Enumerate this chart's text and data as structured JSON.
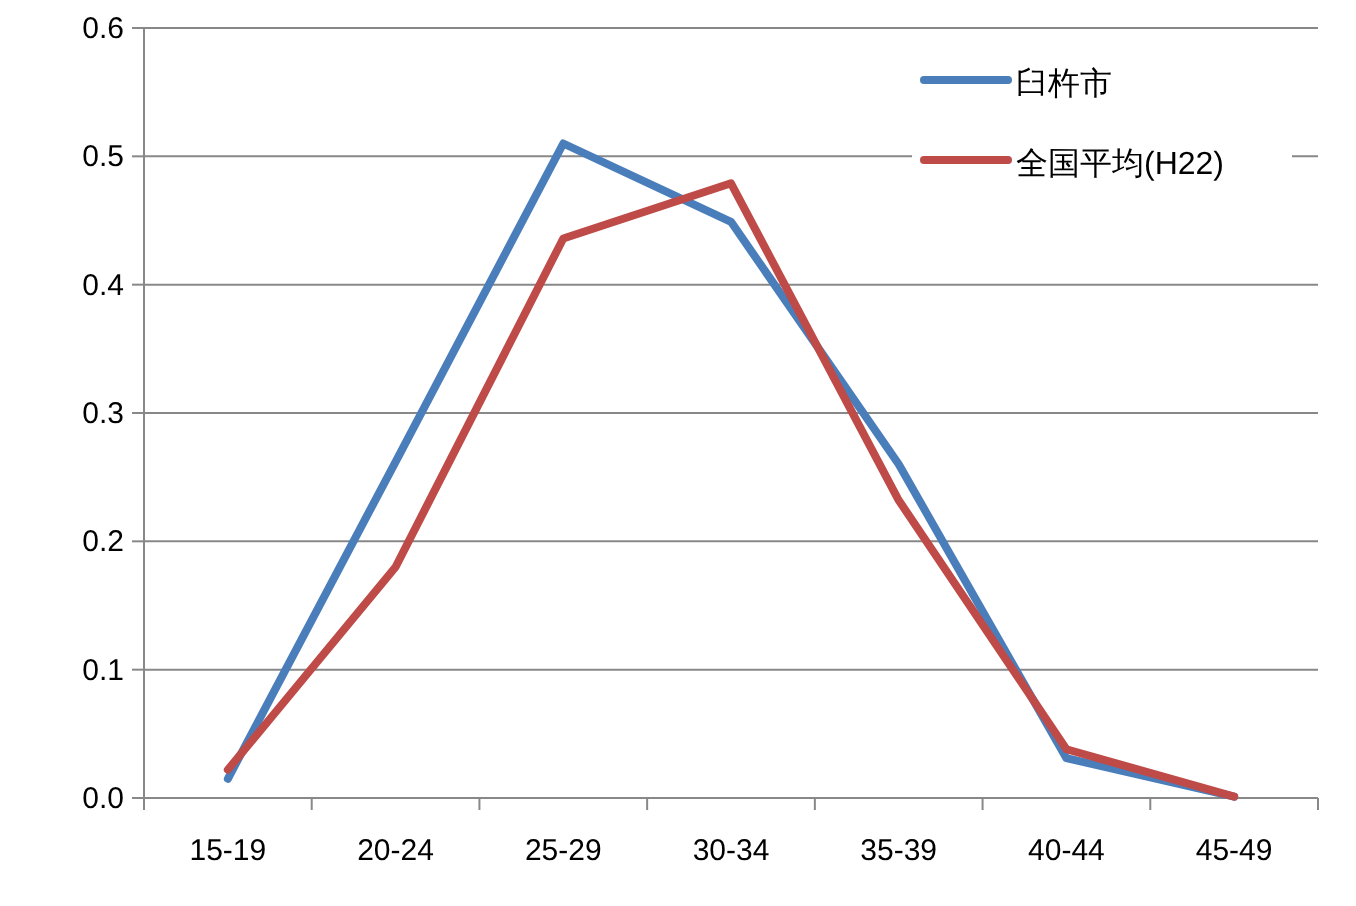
{
  "chart_data": {
    "type": "line",
    "categories": [
      "15-19",
      "20-24",
      "25-29",
      "30-34",
      "35-39",
      "40-44",
      "45-49"
    ],
    "series": [
      {
        "name": "臼杵市",
        "color": "#4a7ebb",
        "values": [
          0.015,
          0.262,
          0.51,
          0.449,
          0.26,
          0.031,
          0.001
        ]
      },
      {
        "name": "全国平均(H22)",
        "color": "#be4b48",
        "values": [
          0.022,
          0.18,
          0.436,
          0.479,
          0.232,
          0.038,
          0.001
        ]
      }
    ],
    "ylim": [
      0,
      0.6
    ],
    "yticks": [
      {
        "value": 0,
        "label": "0.0"
      },
      {
        "value": 0.1,
        "label": "0.1"
      },
      {
        "value": 0.2,
        "label": "0.2"
      },
      {
        "value": 0.3,
        "label": "0.3"
      },
      {
        "value": 0.4,
        "label": "0.4"
      },
      {
        "value": 0.5,
        "label": "0.5"
      },
      {
        "value": 0.6,
        "label": "0.6"
      }
    ],
    "grid": "y",
    "legend": "top right",
    "marker": "none",
    "line_style": "solid"
  }
}
